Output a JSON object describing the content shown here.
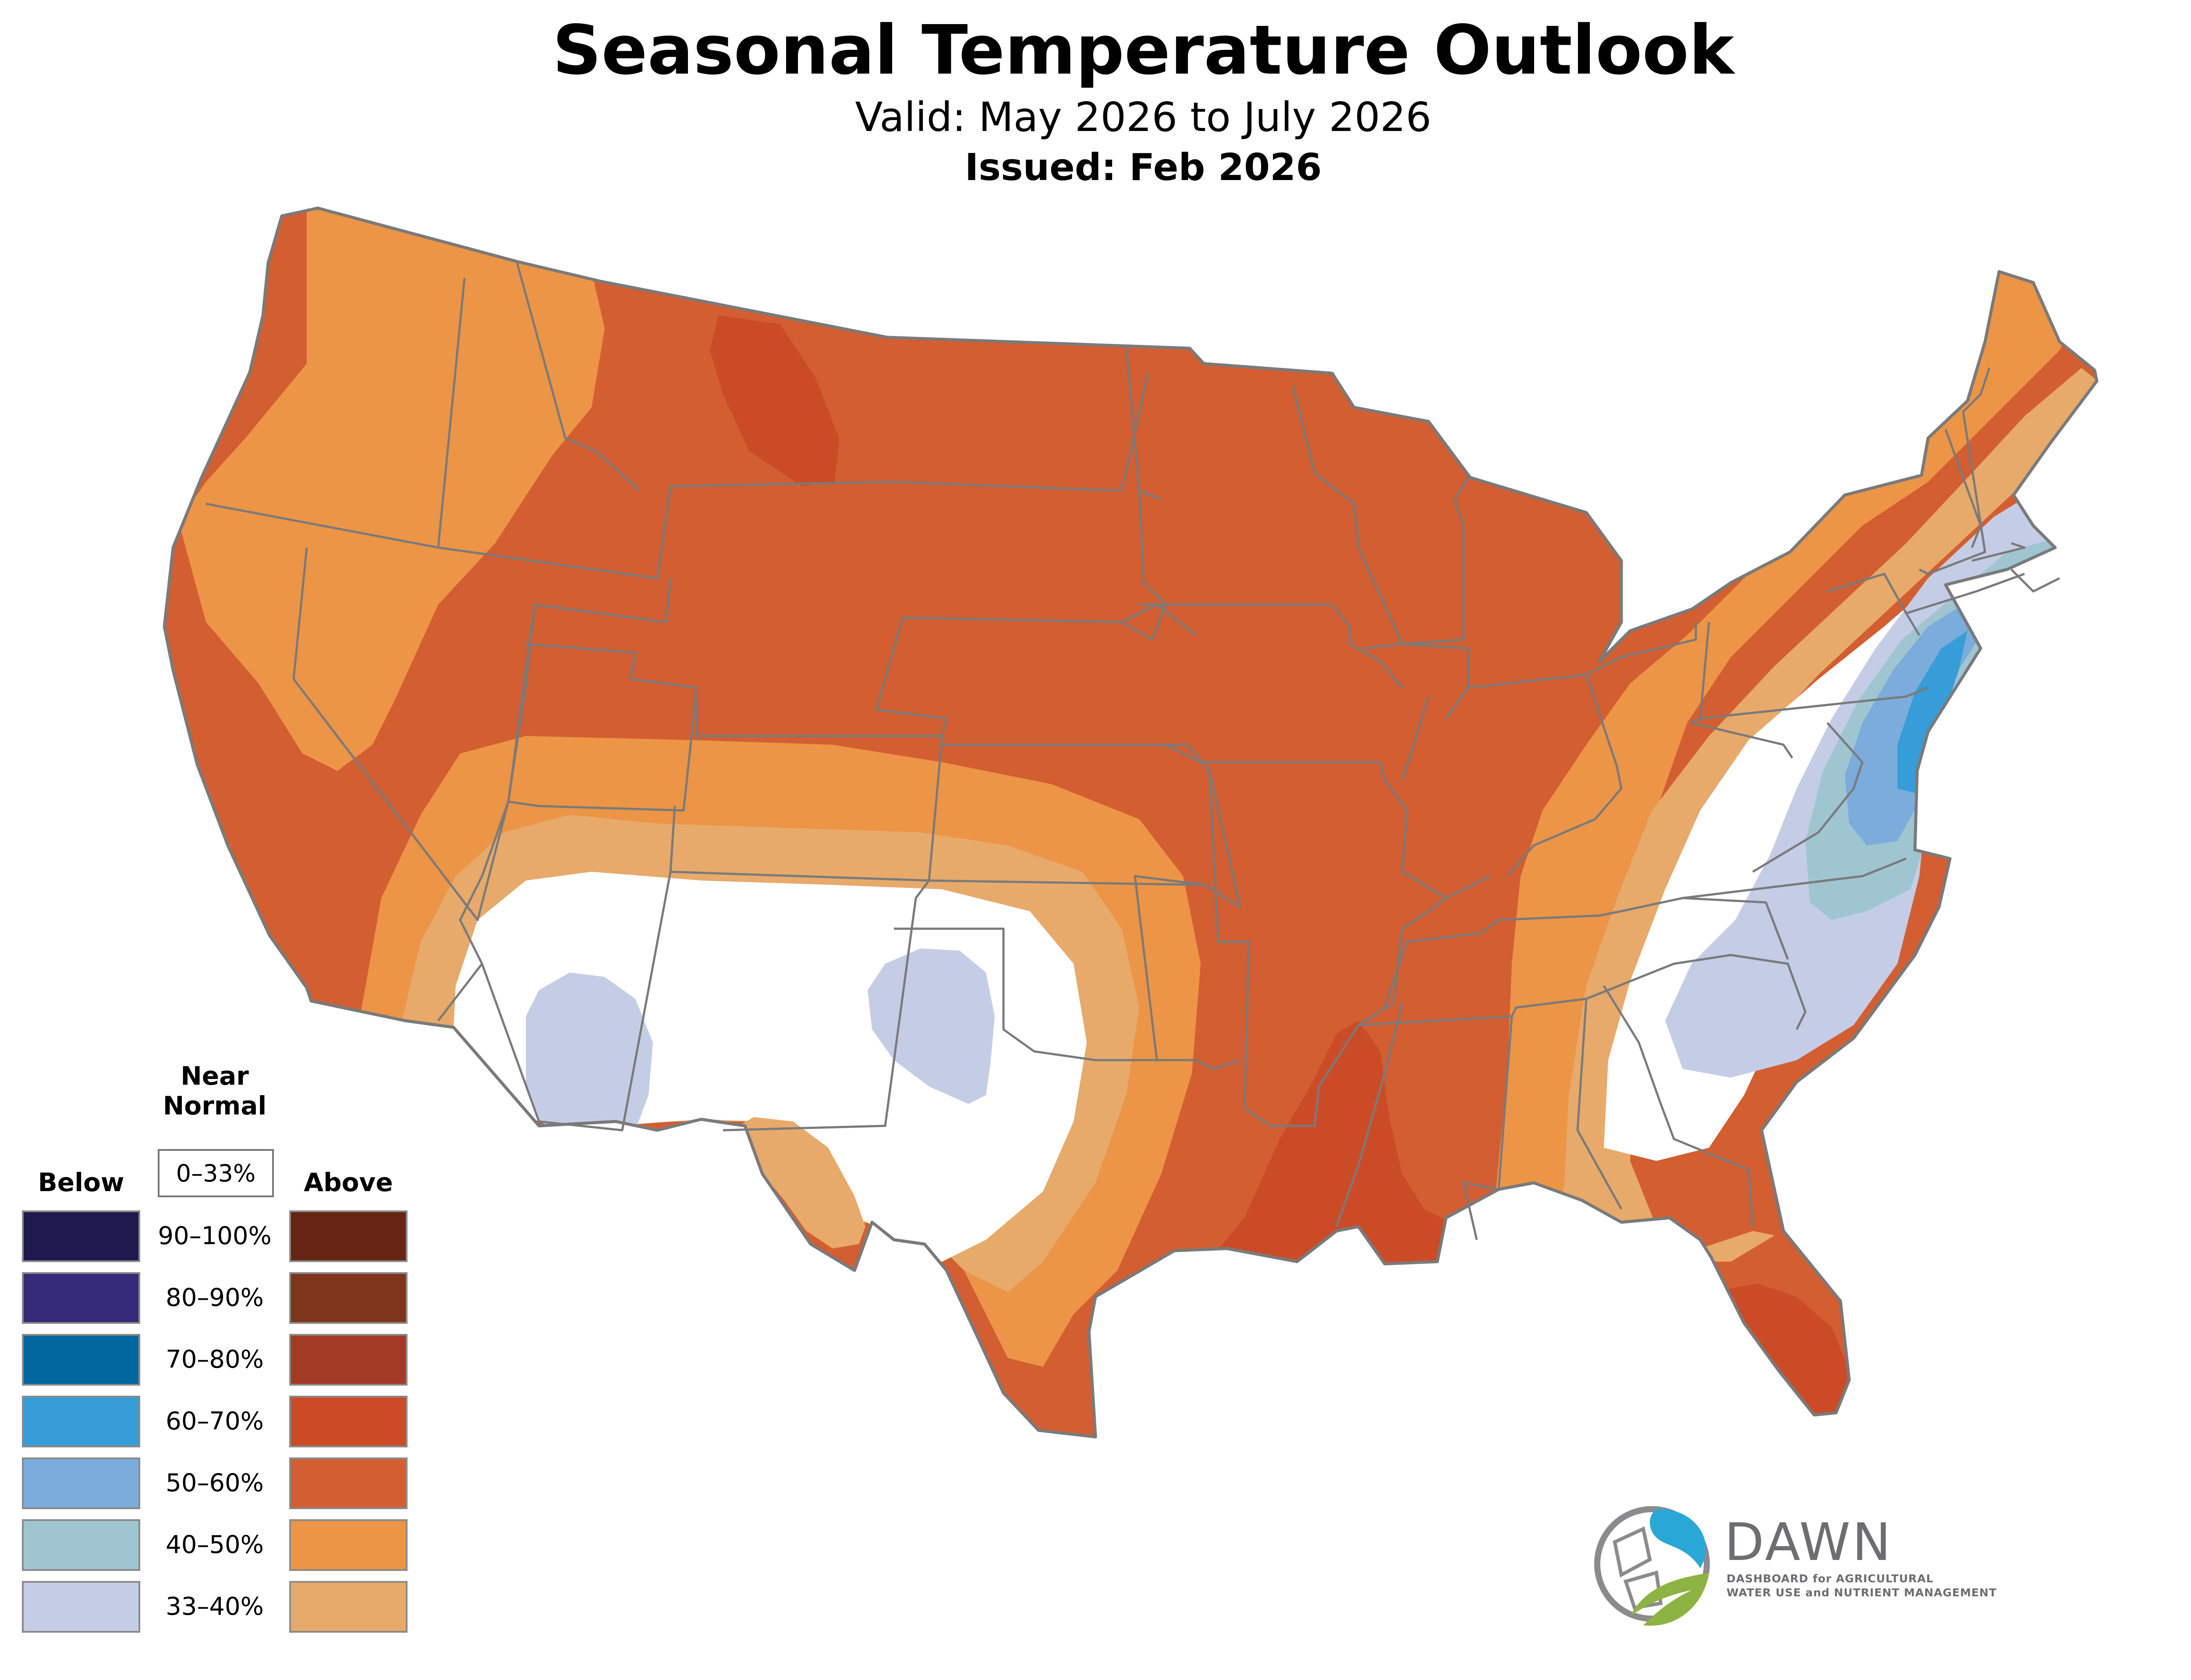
{
  "header": {
    "title": "Seasonal Temperature Outlook",
    "subtitle": "Valid: May 2026 to July 2026",
    "issued": "Issued: Feb 2026"
  },
  "legend": {
    "below_label": "Below",
    "near_label_line1": "Near",
    "near_label_line2": "Normal",
    "near_range": "0–33%",
    "above_label": "Above",
    "rows": [
      {
        "range": "90–100%",
        "below_color": "#1f1a4d",
        "above_color": "#652512"
      },
      {
        "range": "80–90%",
        "below_color": "#352b78",
        "above_color": "#7e351b"
      },
      {
        "range": "70–80%",
        "below_color": "#02679f",
        "above_color": "#a33a25"
      },
      {
        "range": "60–70%",
        "below_color": "#369dd8",
        "above_color": "#cb4b27"
      },
      {
        "range": "50–60%",
        "below_color": "#7bacdc",
        "above_color": "#d35e31"
      },
      {
        "range": "40–50%",
        "below_color": "#9fc5d1",
        "above_color": "#ec9546"
      },
      {
        "range": "33–40%",
        "below_color": "#c5cde6",
        "above_color": "#e7aa6b"
      }
    ]
  },
  "map": {
    "region": "Contiguous United States",
    "colors": {
      "above_33_40": "#e7aa6b",
      "above_40_50": "#ec9546",
      "above_50_60": "#d35e31",
      "above_60_70": "#cb4b27",
      "below_33_40": "#c5cde6",
      "below_40_50": "#9fc5d1",
      "below_50_60": "#7bacdc",
      "below_60_70": "#369dd8",
      "near_normal": "#ffffff",
      "border": "#7a7a7a"
    }
  },
  "logo": {
    "name": "DAWN",
    "line1": "DASHBOARD for AGRICULTURAL",
    "line2": "WATER USE and NUTRIENT MANAGEMENT",
    "colors": {
      "blue": "#29a8d8",
      "green": "#8db442",
      "gray": "#6d6e71"
    }
  }
}
